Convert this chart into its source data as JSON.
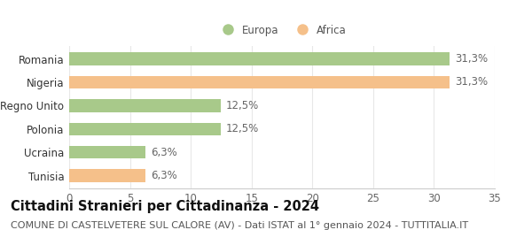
{
  "categories": [
    "Tunisia",
    "Ucraina",
    "Polonia",
    "Regno Unito",
    "Nigeria",
    "Romania"
  ],
  "values": [
    6.3,
    6.3,
    12.5,
    12.5,
    31.3,
    31.3
  ],
  "bar_colors": [
    "#f5c08a",
    "#a8c98a",
    "#a8c98a",
    "#a8c98a",
    "#f5c08a",
    "#a8c98a"
  ],
  "value_labels": [
    "6,3%",
    "6,3%",
    "12,5%",
    "12,5%",
    "31,3%",
    "31,3%"
  ],
  "xlim": [
    0,
    35
  ],
  "xticks": [
    0,
    5,
    10,
    15,
    20,
    25,
    30,
    35
  ],
  "legend_labels": [
    "Europa",
    "Africa"
  ],
  "legend_colors": [
    "#a8c98a",
    "#f5c08a"
  ],
  "title": "Cittadini Stranieri per Cittadinanza - 2024",
  "subtitle": "COMUNE DI CASTELVETERE SUL CALORE (AV) - Dati ISTAT al 1° gennaio 2024 - TUTTITALIA.IT",
  "title_fontsize": 10.5,
  "subtitle_fontsize": 8,
  "background_color": "#ffffff",
  "bar_height": 0.55,
  "label_fontsize": 8.5,
  "tick_fontsize": 8.5
}
